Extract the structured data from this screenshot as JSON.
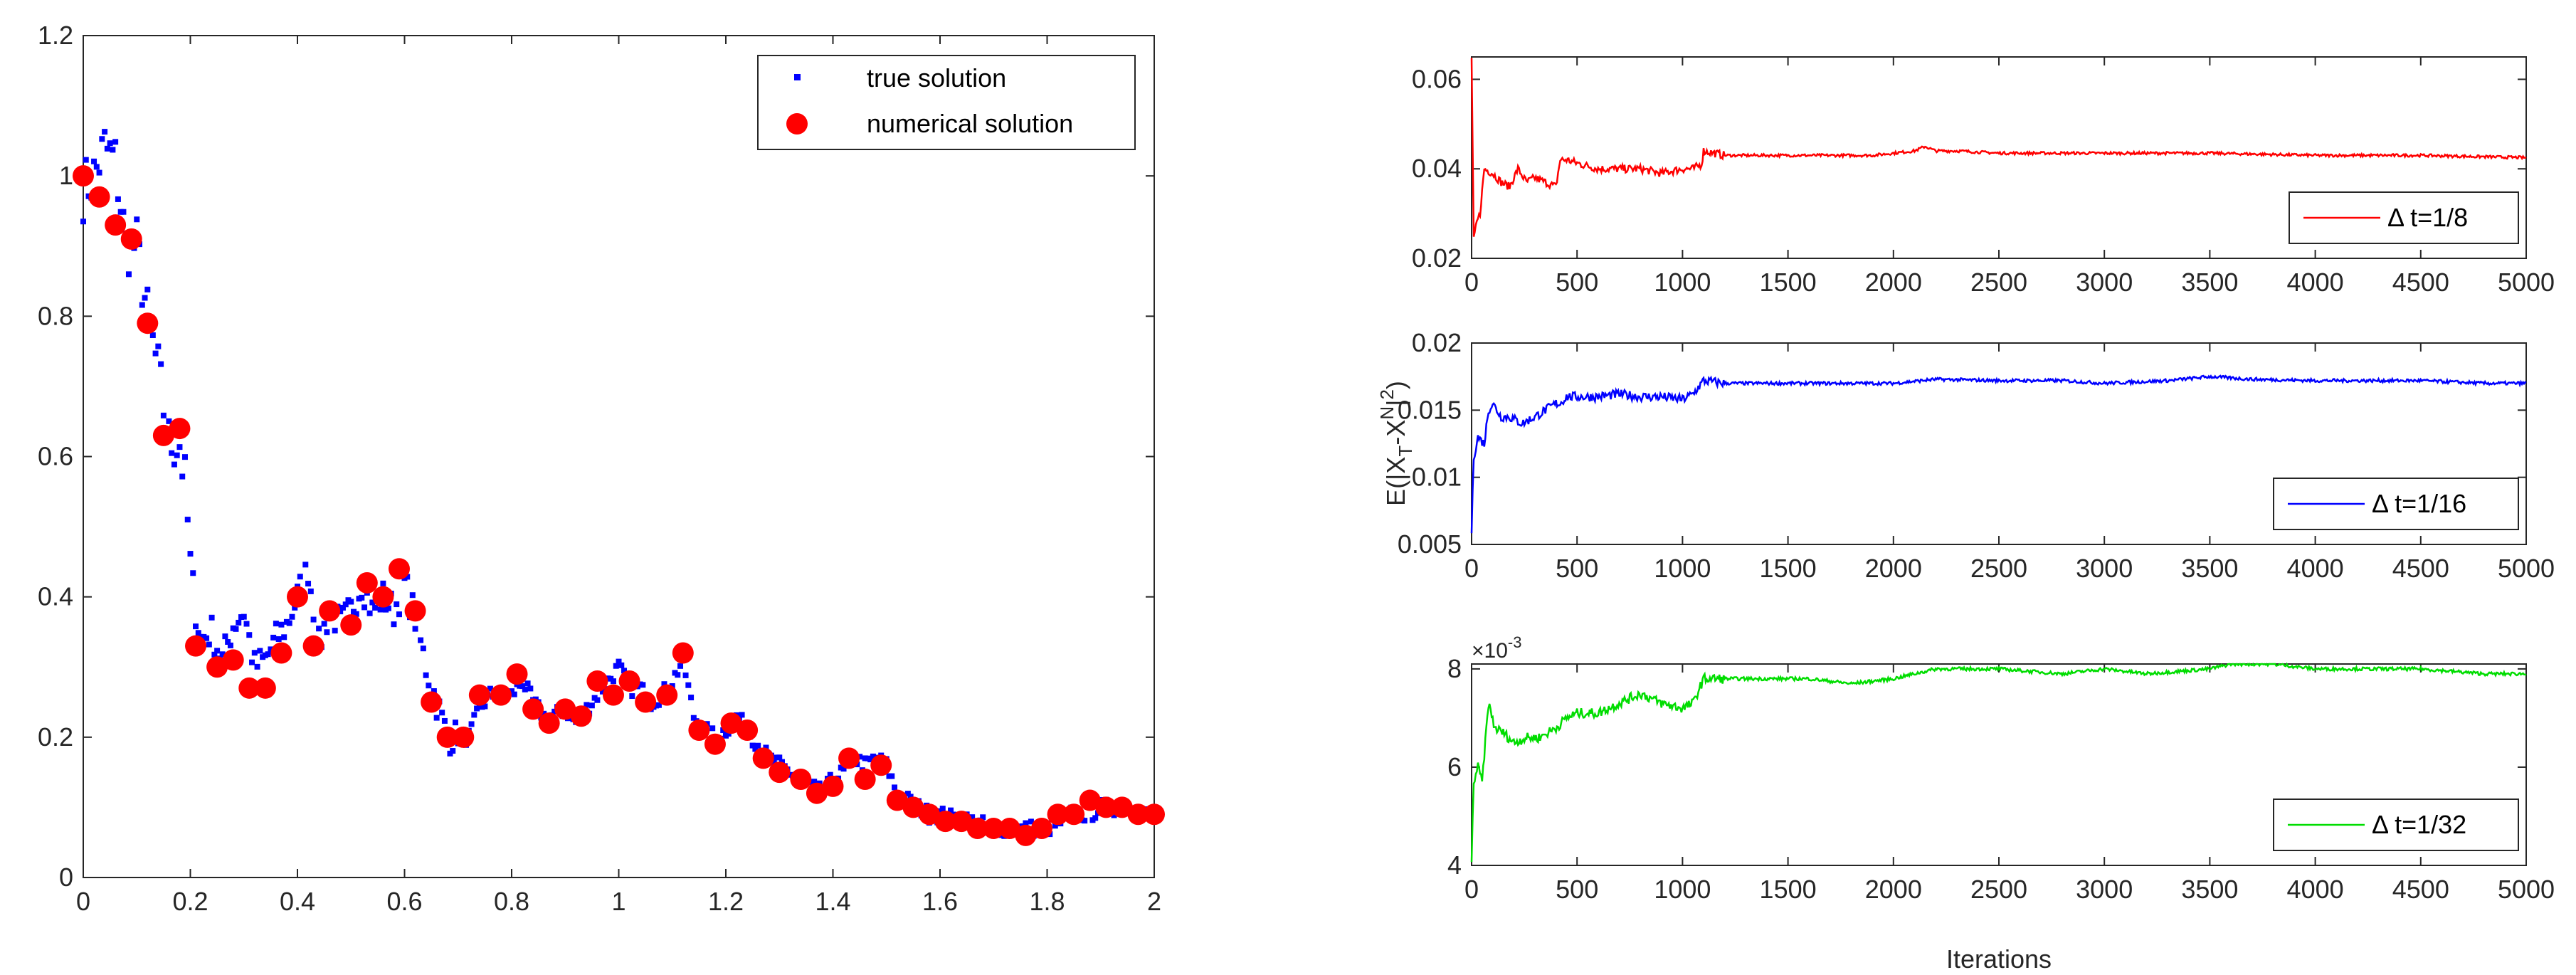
{
  "chart_data": [
    {
      "type": "scatter",
      "title": "",
      "xlabel": "",
      "ylabel": "",
      "xlim": [
        0,
        2
      ],
      "ylim": [
        0,
        1.2
      ],
      "xticks": [
        "0",
        "0.2",
        "0.4",
        "0.6",
        "0.8",
        "1",
        "1.2",
        "1.4",
        "1.6",
        "1.8",
        "2"
      ],
      "yticks": [
        "0",
        "0.2",
        "0.4",
        "0.6",
        "0.8",
        "1",
        "1.2"
      ],
      "legend": {
        "position": "top-right",
        "entries": [
          "true solution",
          "numerical solution"
        ]
      },
      "colors": {
        "true": "#0000ff",
        "numerical": "#ff0000"
      },
      "true_solution_anchors": {
        "x": [
          0,
          0.02,
          0.04,
          0.06,
          0.08,
          0.1,
          0.12,
          0.14,
          0.16,
          0.18,
          0.19,
          0.2,
          0.21,
          0.22,
          0.24,
          0.26,
          0.28,
          0.3,
          0.32,
          0.34,
          0.36,
          0.38,
          0.4,
          0.42,
          0.44,
          0.46,
          0.48,
          0.5,
          0.52,
          0.54,
          0.56,
          0.58,
          0.6,
          0.62,
          0.64,
          0.66,
          0.68,
          0.7,
          0.72,
          0.74,
          0.76,
          0.78,
          0.8,
          0.82,
          0.84,
          0.86,
          0.88,
          0.9,
          0.92,
          0.94,
          0.96,
          0.98,
          1.0,
          1.02,
          1.04,
          1.06,
          1.08,
          1.1,
          1.12,
          1.14,
          1.16,
          1.18,
          1.2,
          1.22,
          1.24,
          1.26,
          1.28,
          1.3,
          1.32,
          1.34,
          1.36,
          1.38,
          1.4,
          1.42,
          1.44,
          1.46,
          1.48,
          1.5,
          1.52,
          1.54,
          1.56,
          1.58,
          1.6,
          1.62,
          1.64,
          1.66,
          1.68,
          1.7,
          1.72,
          1.74,
          1.76,
          1.78,
          1.8,
          1.82,
          1.84,
          1.86,
          1.88,
          1.9,
          1.92,
          1.94,
          1.96,
          1.98,
          2.0
        ],
        "y": [
          0.98,
          1.0,
          1.04,
          1.02,
          0.9,
          0.9,
          0.8,
          0.72,
          0.62,
          0.62,
          0.56,
          0.45,
          0.38,
          0.34,
          0.35,
          0.31,
          0.36,
          0.38,
          0.3,
          0.31,
          0.34,
          0.36,
          0.4,
          0.44,
          0.33,
          0.38,
          0.36,
          0.38,
          0.42,
          0.38,
          0.4,
          0.38,
          0.42,
          0.37,
          0.3,
          0.25,
          0.2,
          0.2,
          0.2,
          0.24,
          0.26,
          0.26,
          0.26,
          0.28,
          0.25,
          0.23,
          0.23,
          0.24,
          0.22,
          0.24,
          0.26,
          0.28,
          0.3,
          0.27,
          0.27,
          0.25,
          0.26,
          0.28,
          0.31,
          0.23,
          0.21,
          0.2,
          0.21,
          0.23,
          0.21,
          0.19,
          0.17,
          0.16,
          0.15,
          0.14,
          0.13,
          0.12,
          0.14,
          0.15,
          0.17,
          0.16,
          0.17,
          0.16,
          0.12,
          0.11,
          0.1,
          0.09,
          0.09,
          0.085,
          0.085,
          0.08,
          0.075,
          0.07,
          0.07,
          0.07,
          0.07,
          0.07,
          0.07,
          0.075,
          0.09,
          0.09,
          0.09,
          0.1,
          0.1,
          0.1,
          0.1,
          0.09,
          0.09
        ]
      },
      "numerical_solution": {
        "x": [
          0,
          0.03,
          0.06,
          0.09,
          0.12,
          0.15,
          0.18,
          0.21,
          0.25,
          0.28,
          0.31,
          0.34,
          0.37,
          0.4,
          0.43,
          0.46,
          0.5,
          0.53,
          0.56,
          0.59,
          0.62,
          0.65,
          0.68,
          0.71,
          0.74,
          0.78,
          0.81,
          0.84,
          0.87,
          0.9,
          0.93,
          0.96,
          0.99,
          1.02,
          1.05,
          1.09,
          1.12,
          1.15,
          1.18,
          1.21,
          1.24,
          1.27,
          1.3,
          1.34,
          1.37,
          1.4,
          1.43,
          1.46,
          1.49,
          1.52,
          1.55,
          1.58,
          1.61,
          1.64,
          1.67,
          1.7,
          1.73,
          1.76,
          1.79,
          1.82,
          1.85,
          1.88,
          1.91,
          1.94,
          1.97,
          2.0
        ],
        "y": [
          1.0,
          0.97,
          0.93,
          0.91,
          0.79,
          0.63,
          0.64,
          0.33,
          0.3,
          0.31,
          0.27,
          0.27,
          0.32,
          0.4,
          0.33,
          0.38,
          0.36,
          0.42,
          0.4,
          0.44,
          0.38,
          0.25,
          0.2,
          0.2,
          0.26,
          0.26,
          0.29,
          0.24,
          0.22,
          0.24,
          0.23,
          0.28,
          0.26,
          0.28,
          0.25,
          0.26,
          0.32,
          0.21,
          0.19,
          0.22,
          0.21,
          0.17,
          0.15,
          0.14,
          0.12,
          0.13,
          0.17,
          0.14,
          0.16,
          0.11,
          0.1,
          0.09,
          0.08,
          0.08,
          0.07,
          0.07,
          0.07,
          0.06,
          0.07,
          0.09,
          0.09,
          0.11,
          0.1,
          0.1,
          0.09,
          0.09
        ]
      }
    },
    {
      "type": "line",
      "title": "",
      "xlabel": "",
      "ylabel": "",
      "xlim": [
        0,
        5000
      ],
      "ylim": [
        0.02,
        0.065
      ],
      "xticks": [
        "0",
        "500",
        "1000",
        "1500",
        "2000",
        "2500",
        "3000",
        "3500",
        "4000",
        "4500",
        "5000"
      ],
      "yticks": [
        "0.02",
        "0.04",
        "0.06"
      ],
      "legend": {
        "position": "bottom-right",
        "entries": [
          "Δ t=1/8"
        ]
      },
      "color": "#ff0000",
      "series": [
        {
          "name": "Δ t=1/8",
          "x": [
            0,
            10,
            25,
            40,
            60,
            100,
            140,
            180,
            220,
            260,
            300,
            350,
            400,
            420,
            450,
            520,
            600,
            700,
            800,
            900,
            1000,
            1050,
            1090,
            1100,
            1200,
            1300,
            1500,
            1700,
            1900,
            2100,
            2150,
            2200,
            2300,
            2500,
            2800,
            3000,
            3500,
            4000,
            4500,
            5000
          ],
          "y": [
            0.065,
            0.024,
            0.028,
            0.03,
            0.04,
            0.039,
            0.037,
            0.036,
            0.04,
            0.037,
            0.038,
            0.037,
            0.036,
            0.042,
            0.042,
            0.041,
            0.04,
            0.04,
            0.04,
            0.039,
            0.04,
            0.04,
            0.041,
            0.044,
            0.043,
            0.043,
            0.043,
            0.043,
            0.043,
            0.044,
            0.045,
            0.044,
            0.044,
            0.0435,
            0.0435,
            0.0435,
            0.0435,
            0.043,
            0.043,
            0.0425
          ]
        }
      ]
    },
    {
      "type": "line",
      "title": "",
      "xlabel": "",
      "ylabel": "E(|X_T-X^N|^2)",
      "xlim": [
        0,
        5000
      ],
      "ylim": [
        0.005,
        0.02
      ],
      "xticks": [
        "0",
        "500",
        "1000",
        "1500",
        "2000",
        "2500",
        "3000",
        "3500",
        "4000",
        "4500",
        "5000"
      ],
      "yticks": [
        "0.005",
        "0.01",
        "0.015",
        "0.02"
      ],
      "legend": {
        "position": "bottom-right",
        "entries": [
          "Δ t=1/16"
        ]
      },
      "color": "#0000ff",
      "series": [
        {
          "name": "Δ t=1/16",
          "x": [
            0,
            10,
            30,
            60,
            80,
            100,
            140,
            180,
            240,
            300,
            350,
            400,
            420,
            450,
            500,
            600,
            700,
            800,
            900,
            1000,
            1050,
            1100,
            1200,
            1300,
            1500,
            1700,
            2000,
            2200,
            2500,
            2800,
            3000,
            3300,
            3500,
            3700,
            4000,
            4500,
            4800,
            5000
          ],
          "y": [
            0.006,
            0.0115,
            0.013,
            0.0125,
            0.015,
            0.0155,
            0.0145,
            0.0145,
            0.014,
            0.0145,
            0.015,
            0.0155,
            0.0155,
            0.016,
            0.016,
            0.016,
            0.0162,
            0.016,
            0.016,
            0.0158,
            0.0162,
            0.0172,
            0.017,
            0.017,
            0.017,
            0.017,
            0.017,
            0.0173,
            0.0172,
            0.0172,
            0.017,
            0.0172,
            0.0175,
            0.0173,
            0.0172,
            0.0172,
            0.017,
            0.017
          ]
        }
      ]
    },
    {
      "type": "line",
      "title": "",
      "xlabel": "Iterations",
      "ylabel": "",
      "exponent_label": "×10",
      "exponent_power": "-3",
      "xlim": [
        0,
        5000
      ],
      "ylim": [
        0.004,
        0.0081
      ],
      "xticks": [
        "0",
        "500",
        "1000",
        "1500",
        "2000",
        "2500",
        "3000",
        "3500",
        "4000",
        "4500",
        "5000"
      ],
      "yticks": [
        "4",
        "6",
        "8"
      ],
      "legend": {
        "position": "bottom-right",
        "entries": [
          "Δ t=1/32"
        ]
      },
      "color": "#00dd00",
      "series": [
        {
          "name": "Δ t=1/32",
          "x": [
            0,
            10,
            30,
            50,
            80,
            110,
            150,
            200,
            260,
            320,
            400,
            450,
            500,
            600,
            700,
            800,
            900,
            1000,
            1050,
            1100,
            1200,
            1400,
            1600,
            1800,
            2000,
            2100,
            2200,
            2500,
            2800,
            3000,
            3200,
            3500,
            3600,
            3800,
            4000,
            4500,
            4800,
            5000
          ],
          "y": [
            0.0041,
            0.0057,
            0.006,
            0.0057,
            0.0073,
            0.0068,
            0.0067,
            0.0065,
            0.0066,
            0.0066,
            0.0068,
            0.007,
            0.0071,
            0.0071,
            0.0073,
            0.0075,
            0.0073,
            0.0072,
            0.0073,
            0.0078,
            0.0078,
            0.0078,
            0.0078,
            0.0077,
            0.0078,
            0.0079,
            0.008,
            0.008,
            0.0079,
            0.008,
            0.0079,
            0.008,
            0.0081,
            0.0081,
            0.008,
            0.008,
            0.0079,
            0.0079
          ]
        }
      ]
    }
  ]
}
